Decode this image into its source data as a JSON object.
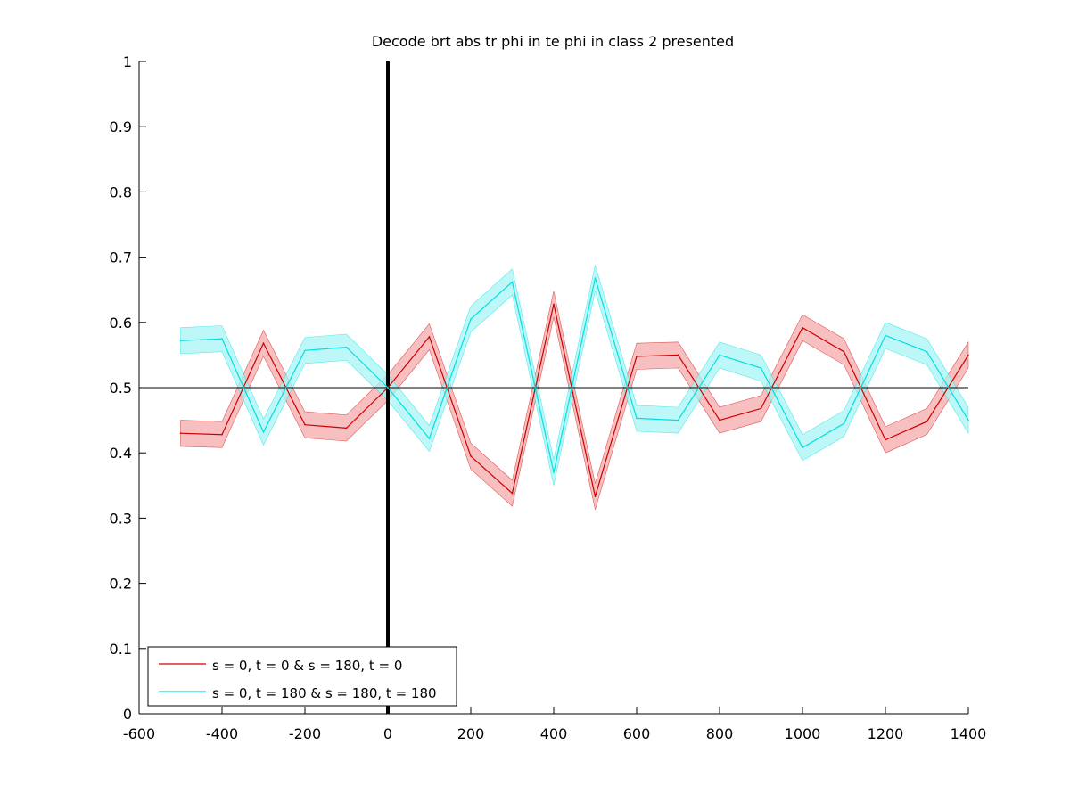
{
  "chart_data": {
    "type": "line",
    "title": "Decode brt abs tr phi in te phi in  class 2 presented",
    "xlabel": "",
    "ylabel": "",
    "xlim": [
      -600,
      1400
    ],
    "ylim": [
      0,
      1
    ],
    "xticks": [
      -600,
      -400,
      -200,
      0,
      200,
      400,
      600,
      800,
      1000,
      1200,
      1400
    ],
    "yticks": [
      0,
      0.1,
      0.2,
      0.3,
      0.4,
      0.5,
      0.6,
      0.7,
      0.8,
      0.9,
      1
    ],
    "xtick_labels": [
      "-600",
      "-400",
      "-200",
      "0",
      "200",
      "400",
      "600",
      "800",
      "1000",
      "1200",
      "1400"
    ],
    "ytick_labels": [
      "0",
      "0.1",
      "0.2",
      "0.3",
      "0.4",
      "0.5",
      "0.6",
      "0.7",
      "0.8",
      "0.9",
      "1"
    ],
    "grid": false,
    "legend_position": "bottom-left",
    "reference_lines": {
      "horizontal_y": 0.5,
      "vertical_x": 0
    },
    "x": [
      -500,
      -400,
      -300,
      -200,
      -100,
      0,
      100,
      200,
      300,
      400,
      500,
      600,
      700,
      800,
      900,
      1000,
      1100,
      1200,
      1300,
      1400
    ],
    "series": [
      {
        "name": "s = 0, t = 0 & s = 180, t = 0",
        "color": "#cc0000",
        "band_color": "#f4a9a9",
        "values": [
          0.43,
          0.428,
          0.568,
          0.443,
          0.438,
          0.5,
          0.578,
          0.395,
          0.338,
          0.628,
          0.333,
          0.548,
          0.55,
          0.45,
          0.468,
          0.592,
          0.555,
          0.42,
          0.448,
          0.55
        ],
        "errors": [
          0.02,
          0.02,
          0.02,
          0.02,
          0.02,
          0.02,
          0.02,
          0.02,
          0.02,
          0.02,
          0.02,
          0.02,
          0.02,
          0.02,
          0.02,
          0.02,
          0.02,
          0.02,
          0.02,
          0.02
        ]
      },
      {
        "name": "s = 0, t = 180 & s = 180, t = 180",
        "color": "#00e0e0",
        "band_color": "#a8f4f4",
        "values": [
          0.572,
          0.575,
          0.432,
          0.557,
          0.562,
          0.5,
          0.422,
          0.605,
          0.662,
          0.37,
          0.668,
          0.453,
          0.45,
          0.55,
          0.53,
          0.408,
          0.445,
          0.58,
          0.555,
          0.45
        ],
        "errors": [
          0.02,
          0.02,
          0.02,
          0.02,
          0.02,
          0.02,
          0.02,
          0.02,
          0.02,
          0.02,
          0.02,
          0.02,
          0.02,
          0.02,
          0.02,
          0.02,
          0.02,
          0.02,
          0.02,
          0.02
        ]
      }
    ]
  }
}
